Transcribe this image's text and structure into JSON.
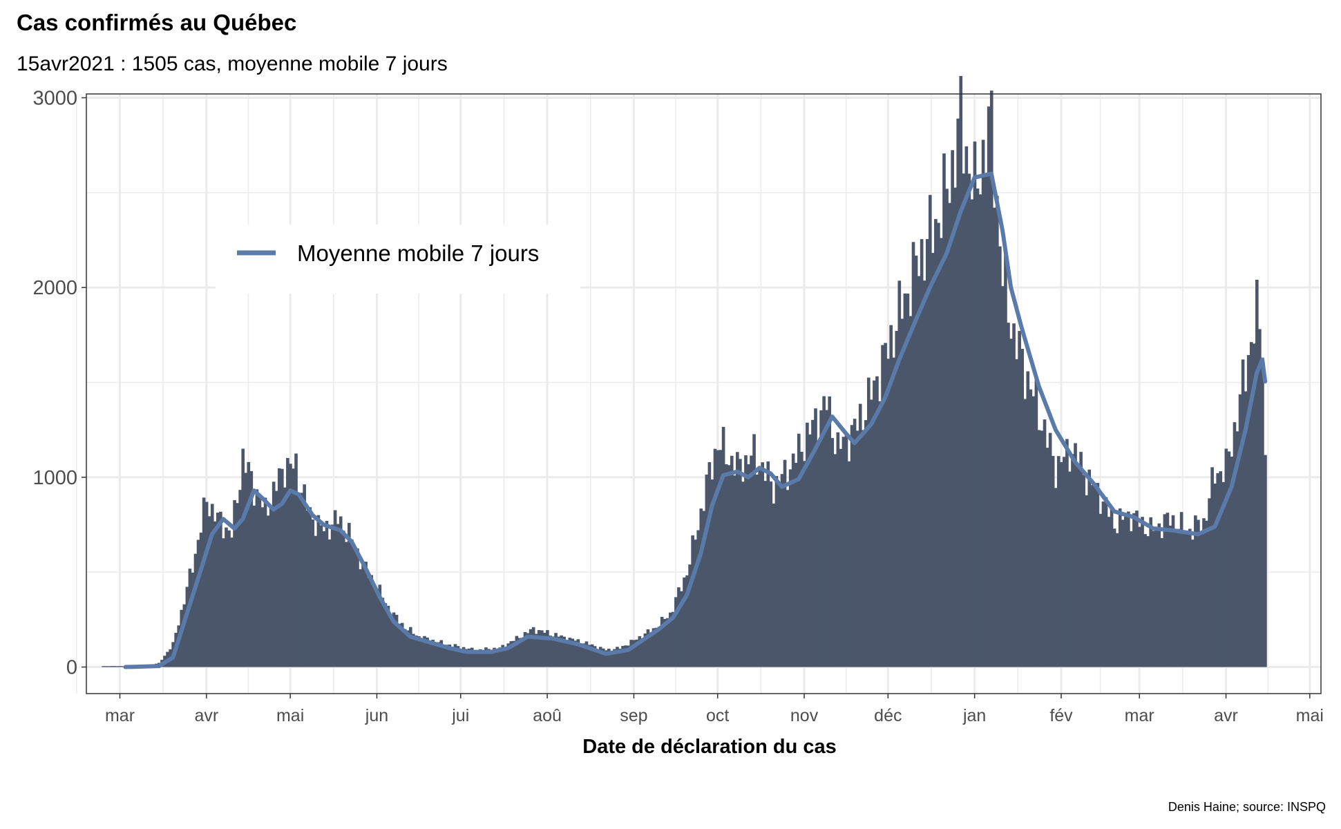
{
  "chart_data": {
    "type": "bar",
    "title": "Cas confirmés au Québec",
    "subtitle": "15avr2021 : 1505 cas, moyenne mobile 7 jours",
    "caption": "Denis Haine; source: INSPQ",
    "xlabel": "Date de déclaration du cas",
    "ylabel": "",
    "x_range": [
      "2020-02-18",
      "2021-05-05"
    ],
    "ylim": [
      -140,
      3020
    ],
    "y_ticks": [
      0,
      1000,
      2000,
      3000
    ],
    "x_ticks": [
      {
        "date": "2020-03-01",
        "label": "mar"
      },
      {
        "date": "2020-04-01",
        "label": "avr"
      },
      {
        "date": "2020-05-01",
        "label": "mai"
      },
      {
        "date": "2020-06-01",
        "label": "jun"
      },
      {
        "date": "2020-07-01",
        "label": "jui"
      },
      {
        "date": "2020-08-01",
        "label": "aoû"
      },
      {
        "date": "2020-09-01",
        "label": "sep"
      },
      {
        "date": "2020-10-01",
        "label": "oct"
      },
      {
        "date": "2020-11-01",
        "label": "nov"
      },
      {
        "date": "2020-12-01",
        "label": "déc"
      },
      {
        "date": "2021-01-01",
        "label": "jan"
      },
      {
        "date": "2021-02-01",
        "label": "fév"
      },
      {
        "date": "2021-03-01",
        "label": "mar"
      },
      {
        "date": "2021-04-01",
        "label": "avr"
      },
      {
        "date": "2021-05-01",
        "label": "mai"
      }
    ],
    "grid": true,
    "legend": {
      "position": "top-left",
      "entries": [
        {
          "label": "Moyenne mobile 7 jours",
          "color": "#5a7baa"
        }
      ]
    },
    "colors": {
      "bars": "#4b566b",
      "line": "#5a7baa"
    },
    "daily_cases": {
      "anchors": [
        [
          "2020-02-24",
          5
        ],
        [
          "2020-03-08",
          5
        ],
        [
          "2020-03-15",
          20
        ],
        [
          "2020-03-20",
          120
        ],
        [
          "2020-03-24",
          350
        ],
        [
          "2020-03-28",
          600
        ],
        [
          "2020-04-01",
          880
        ],
        [
          "2020-04-05",
          780
        ],
        [
          "2020-04-10",
          700
        ],
        [
          "2020-04-14",
          1100
        ],
        [
          "2020-04-18",
          950
        ],
        [
          "2020-04-22",
          820
        ],
        [
          "2020-04-29",
          1060
        ],
        [
          "2020-05-03",
          1050
        ],
        [
          "2020-05-08",
          800
        ],
        [
          "2020-05-13",
          720
        ],
        [
          "2020-05-18",
          780
        ],
        [
          "2020-05-22",
          700
        ],
        [
          "2020-05-27",
          540
        ],
        [
          "2020-06-01",
          420
        ],
        [
          "2020-06-06",
          290
        ],
        [
          "2020-06-11",
          210
        ],
        [
          "2020-06-16",
          160
        ],
        [
          "2020-06-26",
          120
        ],
        [
          "2020-07-06",
          90
        ],
        [
          "2020-07-15",
          100
        ],
        [
          "2020-07-21",
          150
        ],
        [
          "2020-07-27",
          200
        ],
        [
          "2020-08-06",
          160
        ],
        [
          "2020-08-14",
          130
        ],
        [
          "2020-08-22",
          90
        ],
        [
          "2020-08-27",
          100
        ],
        [
          "2020-09-01",
          140
        ],
        [
          "2020-09-08",
          200
        ],
        [
          "2020-09-14",
          280
        ],
        [
          "2020-09-20",
          500
        ],
        [
          "2020-09-24",
          750
        ],
        [
          "2020-09-28",
          1020
        ],
        [
          "2020-10-01",
          1180
        ],
        [
          "2020-10-08",
          1050
        ],
        [
          "2020-10-14",
          1120
        ],
        [
          "2020-10-21",
          950
        ],
        [
          "2020-10-26",
          1030
        ],
        [
          "2020-11-04",
          1270
        ],
        [
          "2020-11-09",
          1390
        ],
        [
          "2020-11-13",
          1150
        ],
        [
          "2020-11-19",
          1250
        ],
        [
          "2020-11-24",
          1400
        ],
        [
          "2020-12-01",
          1680
        ],
        [
          "2020-12-06",
          1900
        ],
        [
          "2020-12-12",
          2150
        ],
        [
          "2020-12-17",
          2300
        ],
        [
          "2020-12-22",
          2500
        ],
        [
          "2020-12-27",
          2870
        ],
        [
          "2021-01-01",
          2500
        ],
        [
          "2021-01-04",
          2700
        ],
        [
          "2021-01-07",
          2850
        ],
        [
          "2021-01-11",
          2050
        ],
        [
          "2021-01-15",
          1750
        ],
        [
          "2021-01-20",
          1520
        ],
        [
          "2021-01-25",
          1300
        ],
        [
          "2021-01-30",
          1050
        ],
        [
          "2021-02-05",
          1150
        ],
        [
          "2021-02-10",
          1000
        ],
        [
          "2021-02-15",
          900
        ],
        [
          "2021-02-20",
          760
        ],
        [
          "2021-02-26",
          800
        ],
        [
          "2021-03-05",
          720
        ],
        [
          "2021-03-12",
          780
        ],
        [
          "2021-03-18",
          720
        ],
        [
          "2021-03-24",
          760
        ],
        [
          "2021-03-28",
          1020
        ],
        [
          "2021-04-01",
          1050
        ],
        [
          "2021-04-05",
          1320
        ],
        [
          "2021-04-09",
          1650
        ],
        [
          "2021-04-12",
          1850
        ],
        [
          "2021-04-14",
          1750
        ],
        [
          "2021-04-15",
          1080
        ]
      ]
    },
    "moving_average_7d": {
      "anchors": [
        [
          "2020-03-03",
          0
        ],
        [
          "2020-03-15",
          5
        ],
        [
          "2020-03-20",
          50
        ],
        [
          "2020-03-28",
          420
        ],
        [
          "2020-04-03",
          700
        ],
        [
          "2020-04-07",
          780
        ],
        [
          "2020-04-11",
          730
        ],
        [
          "2020-04-14",
          780
        ],
        [
          "2020-04-18",
          930
        ],
        [
          "2020-04-21",
          890
        ],
        [
          "2020-04-25",
          830
        ],
        [
          "2020-04-28",
          860
        ],
        [
          "2020-05-01",
          930
        ],
        [
          "2020-05-04",
          910
        ],
        [
          "2020-05-09",
          800
        ],
        [
          "2020-05-13",
          750
        ],
        [
          "2020-05-19",
          720
        ],
        [
          "2020-05-23",
          660
        ],
        [
          "2020-05-28",
          520
        ],
        [
          "2020-06-02",
          370
        ],
        [
          "2020-06-07",
          240
        ],
        [
          "2020-06-13",
          160
        ],
        [
          "2020-06-20",
          130
        ],
        [
          "2020-06-27",
          100
        ],
        [
          "2020-07-03",
          80
        ],
        [
          "2020-07-12",
          80
        ],
        [
          "2020-07-18",
          100
        ],
        [
          "2020-07-25",
          160
        ],
        [
          "2020-08-03",
          150
        ],
        [
          "2020-08-12",
          120
        ],
        [
          "2020-08-18",
          90
        ],
        [
          "2020-08-22",
          70
        ],
        [
          "2020-08-30",
          90
        ],
        [
          "2020-09-05",
          150
        ],
        [
          "2020-09-10",
          200
        ],
        [
          "2020-09-15",
          260
        ],
        [
          "2020-09-20",
          380
        ],
        [
          "2020-09-25",
          600
        ],
        [
          "2020-09-29",
          850
        ],
        [
          "2020-10-03",
          1010
        ],
        [
          "2020-10-08",
          1030
        ],
        [
          "2020-10-12",
          1000
        ],
        [
          "2020-10-16",
          1050
        ],
        [
          "2020-10-20",
          1020
        ],
        [
          "2020-10-24",
          950
        ],
        [
          "2020-10-30",
          990
        ],
        [
          "2020-11-05",
          1150
        ],
        [
          "2020-11-11",
          1320
        ],
        [
          "2020-11-16",
          1230
        ],
        [
          "2020-11-19",
          1180
        ],
        [
          "2020-11-25",
          1280
        ],
        [
          "2020-11-30",
          1420
        ],
        [
          "2020-12-05",
          1620
        ],
        [
          "2020-12-11",
          1830
        ],
        [
          "2020-12-16",
          2000
        ],
        [
          "2020-12-22",
          2180
        ],
        [
          "2020-12-27",
          2400
        ],
        [
          "2021-01-01",
          2580
        ],
        [
          "2021-01-07",
          2600
        ],
        [
          "2021-01-11",
          2300
        ],
        [
          "2021-01-14",
          2000
        ],
        [
          "2021-01-18",
          1780
        ],
        [
          "2021-01-24",
          1480
        ],
        [
          "2021-01-30",
          1250
        ],
        [
          "2021-02-06",
          1080
        ],
        [
          "2021-02-13",
          960
        ],
        [
          "2021-02-20",
          820
        ],
        [
          "2021-02-27",
          790
        ],
        [
          "2021-03-06",
          730
        ],
        [
          "2021-03-13",
          720
        ],
        [
          "2021-03-22",
          700
        ],
        [
          "2021-03-28",
          740
        ],
        [
          "2021-04-03",
          950
        ],
        [
          "2021-04-08",
          1250
        ],
        [
          "2021-04-12",
          1550
        ],
        [
          "2021-04-14",
          1620
        ],
        [
          "2021-04-15",
          1505
        ]
      ]
    }
  }
}
